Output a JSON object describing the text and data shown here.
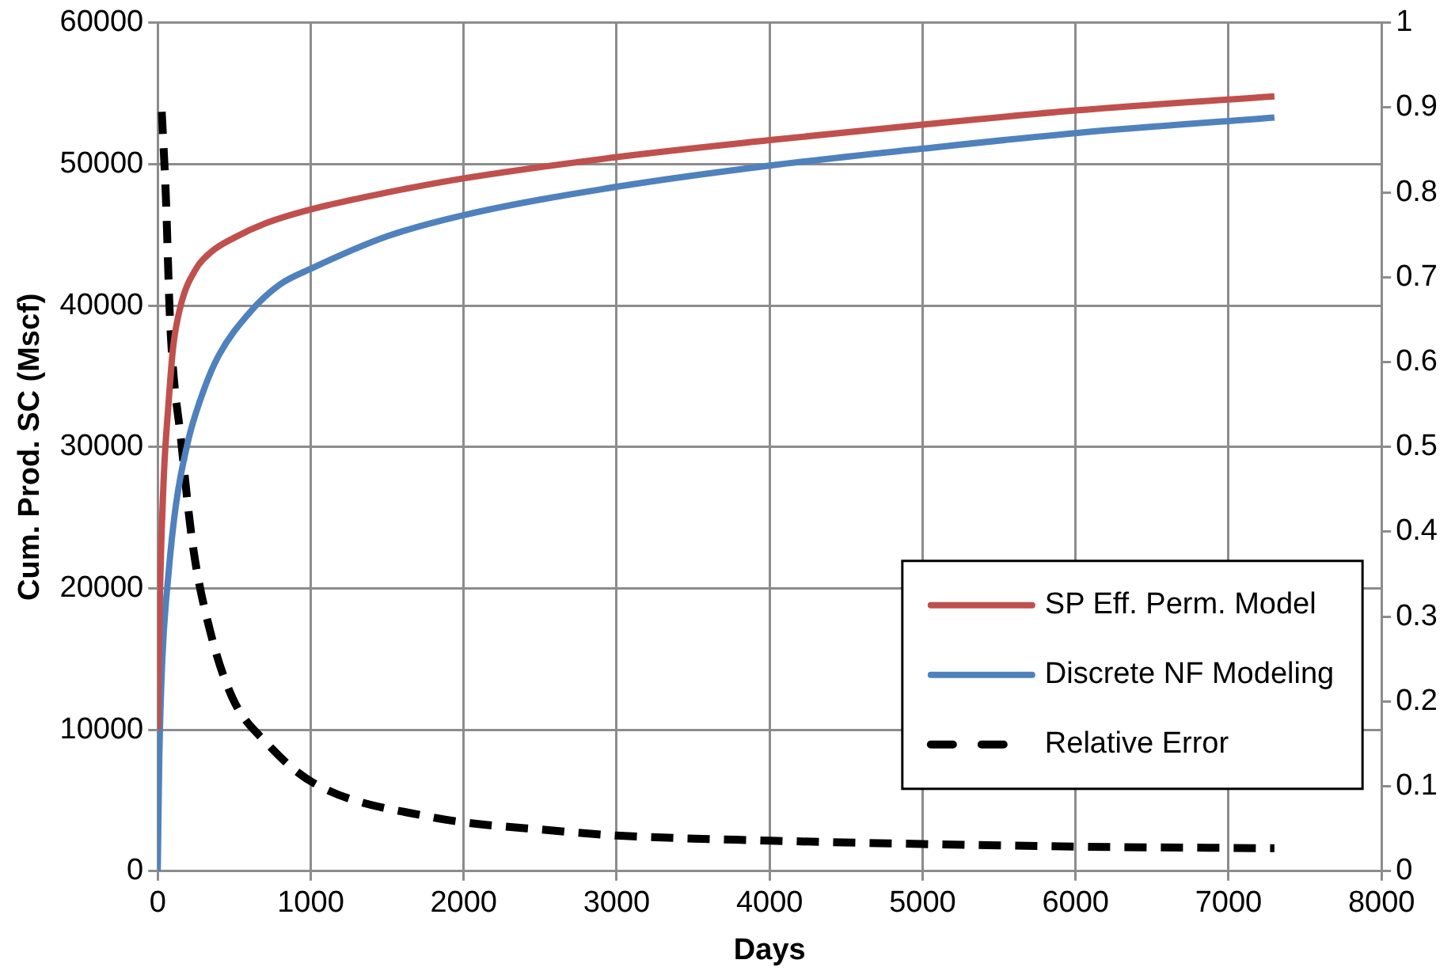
{
  "chart_data": {
    "type": "line",
    "xlabel": "Days",
    "ylabel": "Cum. Prod. SC (Mscf)",
    "xlim": [
      0,
      8000
    ],
    "xticks": [
      0,
      1000,
      2000,
      3000,
      4000,
      5000,
      6000,
      7000,
      8000
    ],
    "ylim": [
      0,
      60000
    ],
    "yticks": [
      0,
      10000,
      20000,
      30000,
      40000,
      50000,
      60000
    ],
    "y2lim": [
      0,
      1
    ],
    "y2ticks": [
      0,
      0.1,
      0.2,
      0.3,
      0.4,
      0.5,
      0.6,
      0.7,
      0.8,
      0.9,
      1
    ],
    "grid": true,
    "legend": "bottom right",
    "marker": "none",
    "series": [
      {
        "name": "SP Eff. Perm. Model",
        "color": "#c0504d",
        "x": [
          0,
          15,
          40,
          70,
          100,
          150,
          250,
          350,
          500,
          700,
          1000,
          1500,
          2000,
          3000,
          4000,
          5000,
          6000,
          7300
        ],
        "values": [
          10000,
          20000,
          28000,
          33000,
          37000,
          40000,
          42600,
          43800,
          44800,
          45800,
          46800,
          48000,
          49000,
          50500,
          51700,
          52800,
          53800,
          54800
        ]
      },
      {
        "name": "Discrete NF Modeling",
        "color": "#4f81bd",
        "x": [
          0,
          10,
          30,
          70,
          120,
          200,
          300,
          400,
          600,
          800,
          1000,
          1500,
          2000,
          3000,
          4000,
          5000,
          6000,
          7300
        ],
        "values": [
          0,
          8000,
          15000,
          21000,
          26000,
          30500,
          34000,
          36500,
          39500,
          41500,
          42600,
          44900,
          46400,
          48400,
          49900,
          51100,
          52200,
          53300
        ]
      },
      {
        "name": "Relative Error",
        "color": "#000000",
        "axis": "y2",
        "line_style": "dashed",
        "x": [
          26,
          52,
          81,
          156,
          230,
          341,
          489,
          712,
          1009,
          1750,
          2640,
          3000,
          4000,
          5000,
          6000,
          7300
        ],
        "values": [
          0.895,
          0.8,
          0.647,
          0.502,
          0.383,
          0.284,
          0.204,
          0.151,
          0.105,
          0.065,
          0.047,
          0.042,
          0.036,
          0.032,
          0.029,
          0.027
        ]
      }
    ]
  }
}
